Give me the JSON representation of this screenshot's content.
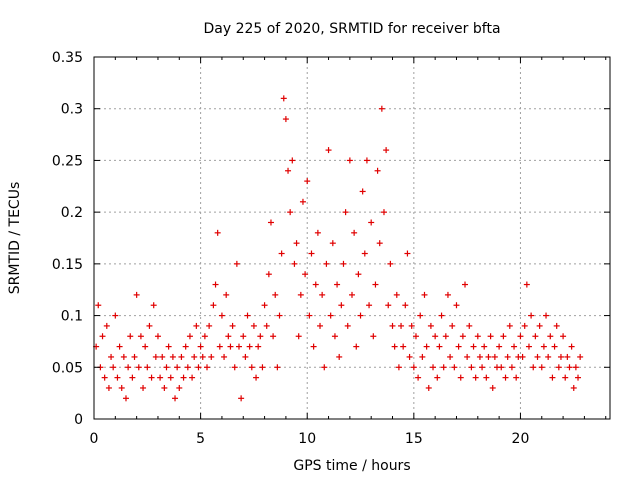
{
  "chart_data": {
    "type": "scatter",
    "title": "Day 225 of 2020, SRMTID for receiver bfta",
    "xlabel": "GPS time / hours",
    "ylabel": "SRMTID / TECUs",
    "xlim": [
      0,
      24.2
    ],
    "ylim": [
      0,
      0.35
    ],
    "x_ticks": [
      0,
      5,
      10,
      15,
      20
    ],
    "x_tick_labels": [
      "0",
      "5",
      "10",
      "15",
      "20"
    ],
    "y_ticks": [
      0,
      0.05,
      0.1,
      0.15,
      0.2,
      0.25,
      0.3,
      0.35
    ],
    "y_tick_labels": [
      "0",
      "0.05",
      "0.1",
      "0.15",
      "0.2",
      "0.25",
      "0.3",
      "0.35"
    ],
    "grid": true,
    "marker": "+",
    "color": "#e00000",
    "series": [
      {
        "name": "SRMTID",
        "points": [
          [
            0.1,
            0.07
          ],
          [
            0.2,
            0.11
          ],
          [
            0.3,
            0.05
          ],
          [
            0.4,
            0.08
          ],
          [
            0.5,
            0.04
          ],
          [
            0.6,
            0.09
          ],
          [
            0.7,
            0.03
          ],
          [
            0.8,
            0.06
          ],
          [
            0.9,
            0.05
          ],
          [
            1.0,
            0.1
          ],
          [
            1.1,
            0.04
          ],
          [
            1.2,
            0.07
          ],
          [
            1.3,
            0.03
          ],
          [
            1.4,
            0.06
          ],
          [
            1.5,
            0.02
          ],
          [
            1.6,
            0.05
          ],
          [
            1.7,
            0.08
          ],
          [
            1.8,
            0.04
          ],
          [
            1.9,
            0.06
          ],
          [
            2.0,
            0.12
          ],
          [
            2.1,
            0.05
          ],
          [
            2.2,
            0.08
          ],
          [
            2.3,
            0.03
          ],
          [
            2.4,
            0.07
          ],
          [
            2.5,
            0.05
          ],
          [
            2.6,
            0.09
          ],
          [
            2.7,
            0.04
          ],
          [
            2.8,
            0.11
          ],
          [
            2.9,
            0.06
          ],
          [
            3.0,
            0.08
          ],
          [
            3.1,
            0.04
          ],
          [
            3.2,
            0.06
          ],
          [
            3.3,
            0.03
          ],
          [
            3.4,
            0.05
          ],
          [
            3.5,
            0.07
          ],
          [
            3.6,
            0.04
          ],
          [
            3.7,
            0.06
          ],
          [
            3.8,
            0.02
          ],
          [
            3.9,
            0.05
          ],
          [
            4.0,
            0.03
          ],
          [
            4.1,
            0.06
          ],
          [
            4.2,
            0.04
          ],
          [
            4.3,
            0.07
          ],
          [
            4.4,
            0.05
          ],
          [
            4.5,
            0.08
          ],
          [
            4.6,
            0.04
          ],
          [
            4.7,
            0.06
          ],
          [
            4.8,
            0.09
          ],
          [
            4.9,
            0.05
          ],
          [
            5.0,
            0.07
          ],
          [
            5.1,
            0.06
          ],
          [
            5.2,
            0.08
          ],
          [
            5.3,
            0.05
          ],
          [
            5.4,
            0.09
          ],
          [
            5.5,
            0.06
          ],
          [
            5.6,
            0.11
          ],
          [
            5.7,
            0.13
          ],
          [
            5.8,
            0.18
          ],
          [
            5.9,
            0.07
          ],
          [
            6.0,
            0.1
          ],
          [
            6.1,
            0.06
          ],
          [
            6.2,
            0.12
          ],
          [
            6.3,
            0.08
          ],
          [
            6.4,
            0.07
          ],
          [
            6.5,
            0.09
          ],
          [
            6.6,
            0.05
          ],
          [
            6.7,
            0.15
          ],
          [
            6.8,
            0.07
          ],
          [
            6.9,
            0.02
          ],
          [
            7.0,
            0.08
          ],
          [
            7.1,
            0.06
          ],
          [
            7.2,
            0.1
          ],
          [
            7.3,
            0.07
          ],
          [
            7.4,
            0.05
          ],
          [
            7.5,
            0.09
          ],
          [
            7.6,
            0.04
          ],
          [
            7.7,
            0.07
          ],
          [
            7.8,
            0.08
          ],
          [
            7.9,
            0.05
          ],
          [
            8.0,
            0.11
          ],
          [
            8.1,
            0.09
          ],
          [
            8.2,
            0.14
          ],
          [
            8.3,
            0.19
          ],
          [
            8.4,
            0.08
          ],
          [
            8.5,
            0.12
          ],
          [
            8.6,
            0.05
          ],
          [
            8.7,
            0.1
          ],
          [
            8.8,
            0.16
          ],
          [
            8.9,
            0.31
          ],
          [
            9.0,
            0.29
          ],
          [
            9.1,
            0.24
          ],
          [
            9.2,
            0.2
          ],
          [
            9.3,
            0.25
          ],
          [
            9.4,
            0.15
          ],
          [
            9.5,
            0.17
          ],
          [
            9.6,
            0.08
          ],
          [
            9.7,
            0.12
          ],
          [
            9.8,
            0.21
          ],
          [
            9.9,
            0.14
          ],
          [
            10.0,
            0.23
          ],
          [
            10.1,
            0.1
          ],
          [
            10.2,
            0.16
          ],
          [
            10.3,
            0.07
          ],
          [
            10.4,
            0.13
          ],
          [
            10.5,
            0.18
          ],
          [
            10.6,
            0.09
          ],
          [
            10.7,
            0.12
          ],
          [
            10.8,
            0.05
          ],
          [
            10.9,
            0.15
          ],
          [
            11.0,
            0.26
          ],
          [
            11.1,
            0.1
          ],
          [
            11.2,
            0.17
          ],
          [
            11.3,
            0.08
          ],
          [
            11.4,
            0.13
          ],
          [
            11.5,
            0.06
          ],
          [
            11.6,
            0.11
          ],
          [
            11.7,
            0.15
          ],
          [
            11.8,
            0.2
          ],
          [
            11.9,
            0.09
          ],
          [
            12.0,
            0.25
          ],
          [
            12.1,
            0.12
          ],
          [
            12.2,
            0.18
          ],
          [
            12.3,
            0.07
          ],
          [
            12.4,
            0.14
          ],
          [
            12.5,
            0.1
          ],
          [
            12.6,
            0.22
          ],
          [
            12.7,
            0.16
          ],
          [
            12.8,
            0.25
          ],
          [
            12.9,
            0.11
          ],
          [
            13.0,
            0.19
          ],
          [
            13.1,
            0.08
          ],
          [
            13.2,
            0.13
          ],
          [
            13.3,
            0.24
          ],
          [
            13.4,
            0.17
          ],
          [
            13.5,
            0.3
          ],
          [
            13.6,
            0.2
          ],
          [
            13.7,
            0.26
          ],
          [
            13.8,
            0.11
          ],
          [
            13.9,
            0.15
          ],
          [
            14.0,
            0.09
          ],
          [
            14.1,
            0.07
          ],
          [
            14.2,
            0.12
          ],
          [
            14.3,
            0.05
          ],
          [
            14.4,
            0.09
          ],
          [
            14.5,
            0.07
          ],
          [
            14.6,
            0.11
          ],
          [
            14.7,
            0.16
          ],
          [
            14.8,
            0.06
          ],
          [
            14.9,
            0.09
          ],
          [
            15.0,
            0.05
          ],
          [
            15.1,
            0.08
          ],
          [
            15.2,
            0.04
          ],
          [
            15.3,
            0.1
          ],
          [
            15.4,
            0.06
          ],
          [
            15.5,
            0.12
          ],
          [
            15.6,
            0.07
          ],
          [
            15.7,
            0.03
          ],
          [
            15.8,
            0.09
          ],
          [
            15.9,
            0.05
          ],
          [
            16.0,
            0.08
          ],
          [
            16.1,
            0.04
          ],
          [
            16.2,
            0.07
          ],
          [
            16.3,
            0.1
          ],
          [
            16.4,
            0.05
          ],
          [
            16.5,
            0.08
          ],
          [
            16.6,
            0.12
          ],
          [
            16.7,
            0.06
          ],
          [
            16.8,
            0.09
          ],
          [
            16.9,
            0.05
          ],
          [
            17.0,
            0.11
          ],
          [
            17.1,
            0.07
          ],
          [
            17.2,
            0.04
          ],
          [
            17.3,
            0.08
          ],
          [
            17.4,
            0.13
          ],
          [
            17.5,
            0.06
          ],
          [
            17.6,
            0.09
          ],
          [
            17.7,
            0.05
          ],
          [
            17.8,
            0.07
          ],
          [
            17.9,
            0.04
          ],
          [
            18.0,
            0.08
          ],
          [
            18.1,
            0.06
          ],
          [
            18.2,
            0.05
          ],
          [
            18.3,
            0.07
          ],
          [
            18.4,
            0.04
          ],
          [
            18.5,
            0.06
          ],
          [
            18.6,
            0.08
          ],
          [
            18.7,
            0.03
          ],
          [
            18.8,
            0.06
          ],
          [
            18.9,
            0.05
          ],
          [
            19.0,
            0.07
          ],
          [
            19.1,
            0.05
          ],
          [
            19.2,
            0.08
          ],
          [
            19.3,
            0.04
          ],
          [
            19.4,
            0.06
          ],
          [
            19.5,
            0.09
          ],
          [
            19.6,
            0.05
          ],
          [
            19.7,
            0.07
          ],
          [
            19.8,
            0.04
          ],
          [
            19.9,
            0.06
          ],
          [
            20.0,
            0.08
          ],
          [
            20.1,
            0.06
          ],
          [
            20.2,
            0.09
          ],
          [
            20.3,
            0.13
          ],
          [
            20.4,
            0.07
          ],
          [
            20.5,
            0.1
          ],
          [
            20.6,
            0.05
          ],
          [
            20.7,
            0.08
          ],
          [
            20.8,
            0.06
          ],
          [
            20.9,
            0.09
          ],
          [
            21.0,
            0.05
          ],
          [
            21.1,
            0.07
          ],
          [
            21.2,
            0.1
          ],
          [
            21.3,
            0.06
          ],
          [
            21.4,
            0.08
          ],
          [
            21.5,
            0.04
          ],
          [
            21.6,
            0.07
          ],
          [
            21.7,
            0.09
          ],
          [
            21.8,
            0.05
          ],
          [
            21.9,
            0.06
          ],
          [
            22.0,
            0.08
          ],
          [
            22.1,
            0.04
          ],
          [
            22.2,
            0.06
          ],
          [
            22.3,
            0.05
          ],
          [
            22.4,
            0.07
          ],
          [
            22.5,
            0.03
          ],
          [
            22.6,
            0.05
          ],
          [
            22.7,
            0.04
          ],
          [
            22.8,
            0.06
          ]
        ]
      }
    ]
  }
}
